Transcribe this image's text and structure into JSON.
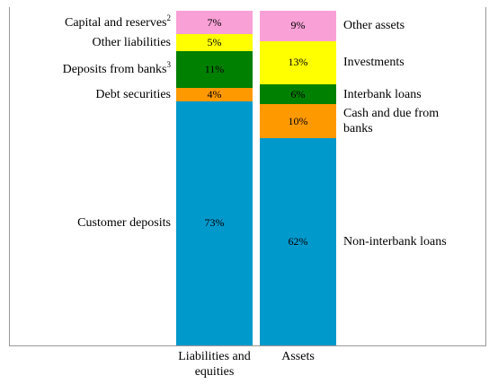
{
  "chart_data": {
    "type": "stacked-bar",
    "categories": [
      "Liabilities and equities",
      "Assets"
    ],
    "stacks": [
      {
        "label_side": "left",
        "segments": [
          {
            "name": "Capital and reserves",
            "note": "2",
            "value": 7,
            "value_label": "7%",
            "color": "#f9a0d6"
          },
          {
            "name": "Other liabilities",
            "value": 5,
            "value_label": "5%",
            "color": "#ffff00"
          },
          {
            "name": "Deposits from banks",
            "note": "3",
            "value": 11,
            "value_label": "11%",
            "color": "#008000"
          },
          {
            "name": "Debt securities",
            "value": 4,
            "value_label": "4%",
            "color": "#ff9900"
          },
          {
            "name": "Customer deposits",
            "value": 73,
            "value_label": "73%",
            "color": "#0099cc"
          }
        ]
      },
      {
        "label_side": "right",
        "segments": [
          {
            "name": "Other assets",
            "value": 9,
            "value_label": "9%",
            "color": "#f9a0d6"
          },
          {
            "name": "Investments",
            "value": 13,
            "value_label": "13%",
            "color": "#ffff00"
          },
          {
            "name": "Interbank loans",
            "value": 6,
            "value_label": "6%",
            "color": "#008000"
          },
          {
            "name": "Cash and due from banks",
            "value": 10,
            "value_label": "10%",
            "color": "#ff9900"
          },
          {
            "name": "Non-interbank loans",
            "value": 62,
            "value_label": "62%",
            "color": "#0099cc"
          }
        ]
      }
    ]
  }
}
